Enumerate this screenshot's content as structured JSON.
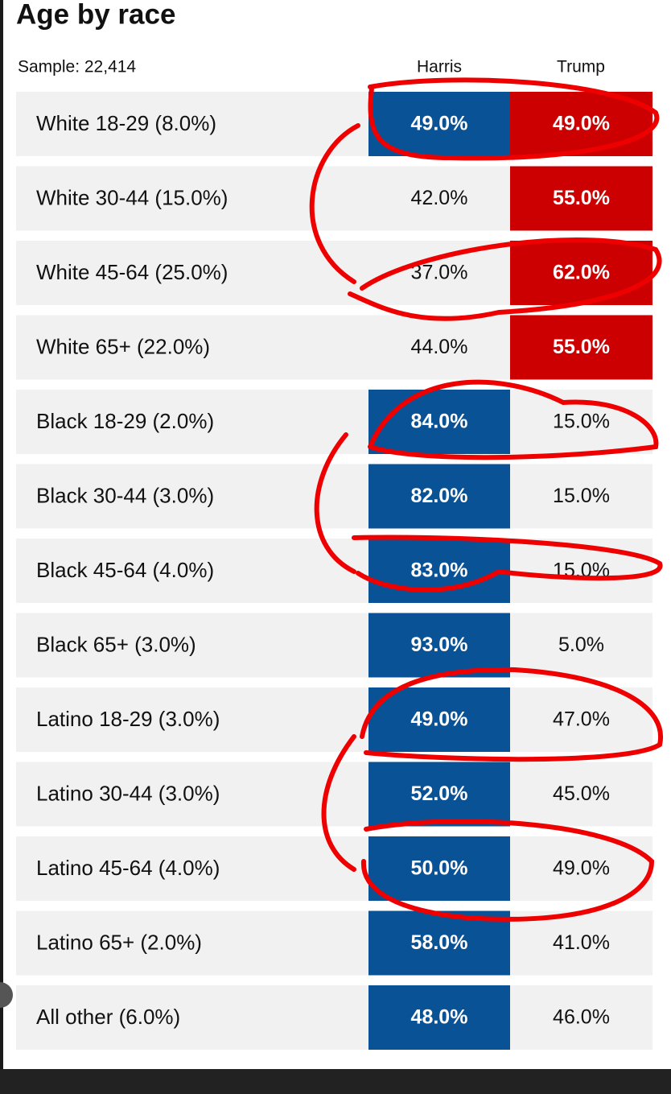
{
  "header": {
    "title": "Age by race",
    "sample": "Sample: 22,414",
    "columns": [
      "Harris",
      "Trump"
    ]
  },
  "colors": {
    "harris": "#0a5296",
    "trump": "#cc0000"
  },
  "table": {
    "rows": [
      {
        "label": "White 18-29 (8.0%)",
        "harris": "49.0%",
        "trump": "49.0%",
        "filled": [
          "harris",
          "trump"
        ]
      },
      {
        "label": "White 30-44 (15.0%)",
        "harris": "42.0%",
        "trump": "55.0%",
        "filled": [
          "trump"
        ]
      },
      {
        "label": "White 45-64 (25.0%)",
        "harris": "37.0%",
        "trump": "62.0%",
        "filled": [
          "trump"
        ]
      },
      {
        "label": "White 65+ (22.0%)",
        "harris": "44.0%",
        "trump": "55.0%",
        "filled": [
          "trump"
        ]
      },
      {
        "label": "Black 18-29 (2.0%)",
        "harris": "84.0%",
        "trump": "15.0%",
        "filled": [
          "harris"
        ]
      },
      {
        "label": "Black 30-44 (3.0%)",
        "harris": "82.0%",
        "trump": "15.0%",
        "filled": [
          "harris"
        ]
      },
      {
        "label": "Black 45-64 (4.0%)",
        "harris": "83.0%",
        "trump": "15.0%",
        "filled": [
          "harris"
        ]
      },
      {
        "label": "Black 65+ (3.0%)",
        "harris": "93.0%",
        "trump": "5.0%",
        "filled": [
          "harris"
        ]
      },
      {
        "label": "Latino 18-29 (3.0%)",
        "harris": "49.0%",
        "trump": "47.0%",
        "filled": [
          "harris"
        ]
      },
      {
        "label": "Latino 30-44 (3.0%)",
        "harris": "52.0%",
        "trump": "45.0%",
        "filled": [
          "harris"
        ]
      },
      {
        "label": "Latino 45-64 (4.0%)",
        "harris": "50.0%",
        "trump": "49.0%",
        "filled": [
          "harris"
        ]
      },
      {
        "label": "Latino 65+ (2.0%)",
        "harris": "58.0%",
        "trump": "41.0%",
        "filled": [
          "harris"
        ]
      },
      {
        "label": "All other (6.0%)",
        "harris": "48.0%",
        "trump": "46.0%",
        "filled": [
          "harris"
        ]
      }
    ]
  }
}
